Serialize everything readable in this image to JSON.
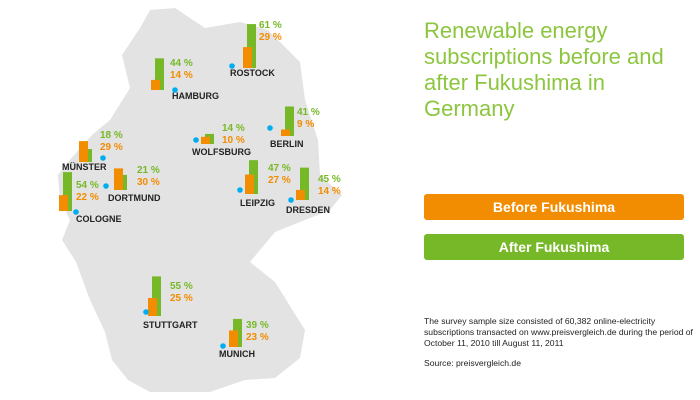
{
  "title": "Renewable energy subscriptions before and after Fukushima in Germany",
  "legend": {
    "before": "Before Fukushima",
    "after": "After Fukushima"
  },
  "colors": {
    "before": "#f28c00",
    "after": "#77b828",
    "map": "#e3e3e3",
    "city_dot": "#00aeef",
    "title": "#8cc63f"
  },
  "footnote": {
    "text": "The survey sample size consisted of 60,382 online-electricity subscriptions transacted on www.preisvergleich.de during the period of October 11, 2010 till August 11, 2011",
    "source": "Source: preisvergleich.de"
  },
  "chart_data": {
    "type": "bar",
    "unit": "%",
    "series": [
      {
        "name": "Before Fukushima",
        "key": "before"
      },
      {
        "name": "After Fukushima",
        "key": "after"
      }
    ],
    "cities": [
      {
        "name": "ROSTOCK",
        "after": 61,
        "before": 29
      },
      {
        "name": "HAMBURG",
        "after": 44,
        "before": 14
      },
      {
        "name": "BERLIN",
        "after": 41,
        "before": 9
      },
      {
        "name": "WOLFSBURG",
        "after": 14,
        "before": 10
      },
      {
        "name": "MÜNSTER",
        "after": 18,
        "before": 29
      },
      {
        "name": "DORTMUND",
        "after": 21,
        "before": 30
      },
      {
        "name": "COLOGNE",
        "after": 54,
        "before": 22
      },
      {
        "name": "LEIPZIG",
        "after": 47,
        "before": 27
      },
      {
        "name": "DRESDEN",
        "after": 45,
        "before": 14
      },
      {
        "name": "STUTTGART",
        "after": 55,
        "before": 25
      },
      {
        "name": "MUNICH",
        "after": 39,
        "before": 23
      }
    ]
  }
}
